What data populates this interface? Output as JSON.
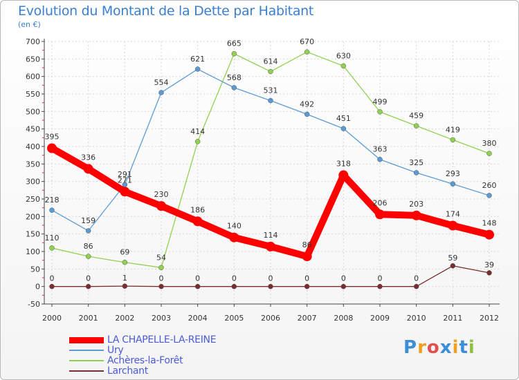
{
  "chart_data": {
    "type": "line",
    "title": "Evolution du Montant de la Dette par Habitant",
    "subtitle": "(en €)",
    "xlabel": "",
    "ylabel": "",
    "x": [
      "2000",
      "2001",
      "2002",
      "2003",
      "2004",
      "2005",
      "2006",
      "2007",
      "2008",
      "2009",
      "2010",
      "2011",
      "2012"
    ],
    "ylim": [
      -50,
      700
    ],
    "yticks": [
      -50,
      0,
      50,
      100,
      150,
      200,
      250,
      300,
      350,
      400,
      450,
      500,
      550,
      600,
      650,
      700
    ],
    "grid": true,
    "legend_position": "bottom-left",
    "series": [
      {
        "name": "LA CHAPELLE-LA-REINE",
        "color": "#ff0000",
        "values": [
          395,
          336,
          271,
          230,
          186,
          140,
          114,
          86,
          318,
          206,
          203,
          174,
          148
        ]
      },
      {
        "name": "Ury",
        "color": "#5b9bd5",
        "values": [
          218,
          159,
          291,
          554,
          621,
          568,
          531,
          492,
          451,
          363,
          325,
          293,
          260
        ]
      },
      {
        "name": "Achères-la-Forêt",
        "color": "#92d050",
        "values": [
          110,
          86,
          69,
          54,
          414,
          665,
          614,
          670,
          630,
          499,
          459,
          419,
          380
        ]
      },
      {
        "name": "Larchant",
        "color": "#7b2c2c",
        "values": [
          0,
          0,
          1,
          0,
          0,
          0,
          0,
          0,
          0,
          0,
          0,
          59,
          39
        ]
      }
    ]
  },
  "logo": {
    "letters": [
      "P",
      "r",
      "o",
      "x",
      "i",
      "t",
      "i"
    ]
  }
}
